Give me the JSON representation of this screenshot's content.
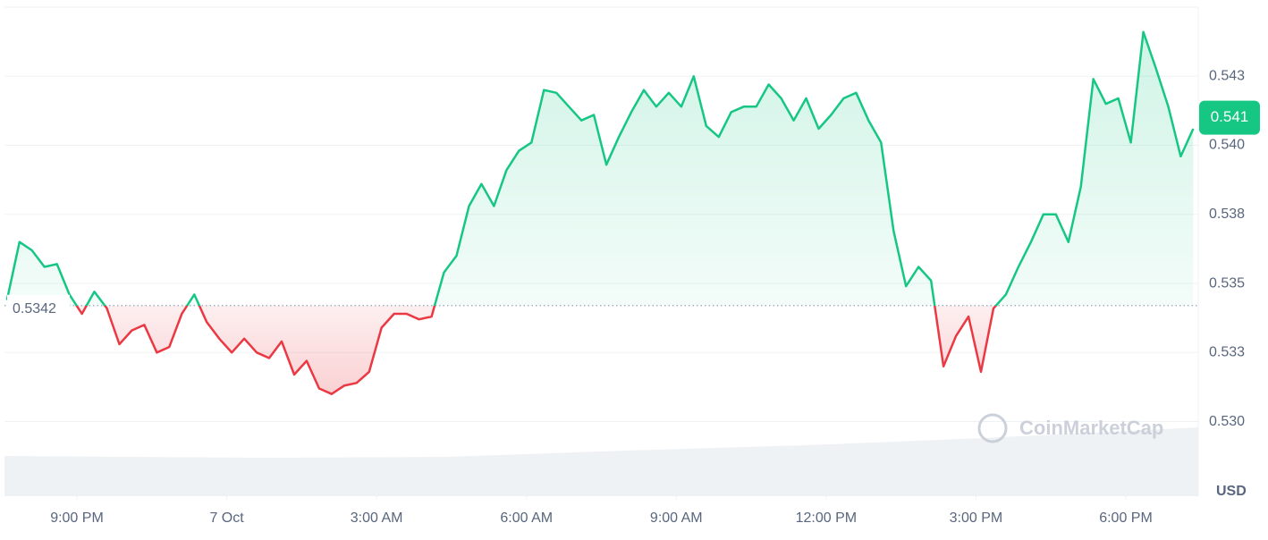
{
  "chart_data": {
    "type": "line",
    "x": [
      19.6,
      19.85,
      20.1,
      20.35,
      20.6,
      20.85,
      21.1,
      21.35,
      21.6,
      21.85,
      22.1,
      22.35,
      22.6,
      22.85,
      23.1,
      23.35,
      23.6,
      23.85,
      24.1,
      24.35,
      24.6,
      24.85,
      25.1,
      25.35,
      25.6,
      25.85,
      26.1,
      26.35,
      26.6,
      26.85,
      27.1,
      27.35,
      27.6,
      27.85,
      28.1,
      28.35,
      28.6,
      28.85,
      29.1,
      29.35,
      29.6,
      29.85,
      30.1,
      30.35,
      30.6,
      30.85,
      31.1,
      31.35,
      31.6,
      31.85,
      32.1,
      32.35,
      32.6,
      32.85,
      33.1,
      33.35,
      33.6,
      33.85,
      34.1,
      34.35,
      34.6,
      34.85,
      35.1,
      35.35,
      35.6,
      35.85,
      36.1,
      36.35,
      36.6,
      36.85,
      37.1,
      37.35,
      37.6,
      37.85,
      38.1,
      38.35,
      38.6,
      38.85,
      39.1,
      39.35,
      39.6,
      39.85,
      40.1,
      40.35,
      40.6,
      40.85,
      41.1,
      41.35,
      41.6,
      41.85,
      42.1,
      42.35,
      42.6,
      42.85,
      43.1,
      43.35
    ],
    "values": [
      0.5344,
      0.5365,
      0.5362,
      0.5356,
      0.5357,
      0.5346,
      0.5339,
      0.5347,
      0.5341,
      0.5328,
      0.5333,
      0.5335,
      0.5325,
      0.5327,
      0.5339,
      0.5346,
      0.5336,
      0.533,
      0.5325,
      0.533,
      0.5325,
      0.5323,
      0.5329,
      0.5317,
      0.5322,
      0.5312,
      0.531,
      0.5313,
      0.5314,
      0.5318,
      0.5334,
      0.5339,
      0.5339,
      0.5337,
      0.5338,
      0.5354,
      0.536,
      0.5378,
      0.5386,
      0.5378,
      0.5391,
      0.5398,
      0.5401,
      0.542,
      0.5419,
      0.5414,
      0.5409,
      0.5411,
      0.5393,
      0.5403,
      0.5412,
      0.542,
      0.5414,
      0.5419,
      0.5414,
      0.5425,
      0.5407,
      0.5403,
      0.5412,
      0.5414,
      0.5414,
      0.5422,
      0.5417,
      0.5409,
      0.5417,
      0.5406,
      0.5411,
      0.5417,
      0.5419,
      0.5409,
      0.5401,
      0.5369,
      0.5349,
      0.5356,
      0.5351,
      0.532,
      0.5331,
      0.5338,
      0.5318,
      0.5341,
      0.5346,
      0.5356,
      0.5365,
      0.5375,
      0.5375,
      0.5365,
      0.5385,
      0.5424,
      0.5415,
      0.5417,
      0.5401,
      0.5441,
      0.5428,
      0.5414,
      0.5396,
      0.5406
    ],
    "up_color": "#16c784",
    "down_color": "#ea3943",
    "baseline": 0.5342,
    "current_price": 0.541,
    "xlim": [
      19.55,
      43.45
    ],
    "xticks": [
      {
        "value": 21,
        "label": "9:00 PM"
      },
      {
        "value": 24,
        "label": "7 Oct"
      },
      {
        "value": 27,
        "label": "3:00 AM"
      },
      {
        "value": 30,
        "label": "6:00 AM"
      },
      {
        "value": 33,
        "label": "9:00 AM"
      },
      {
        "value": 36,
        "label": "12:00 PM"
      },
      {
        "value": 39,
        "label": "3:00 PM"
      },
      {
        "value": 42,
        "label": "6:00 PM"
      }
    ],
    "ylim": [
      0.5273,
      0.545
    ],
    "yticks": [
      {
        "value": 0.53,
        "label": "0.530"
      },
      {
        "value": 0.5325,
        "label": "0.533"
      },
      {
        "value": 0.535,
        "label": "0.535"
      },
      {
        "value": 0.5375,
        "label": "0.538"
      },
      {
        "value": 0.54,
        "label": "0.540"
      },
      {
        "value": 0.5425,
        "label": "0.543"
      }
    ],
    "grid": true,
    "watermark": "CoinMarketCap",
    "currency": "USD"
  }
}
